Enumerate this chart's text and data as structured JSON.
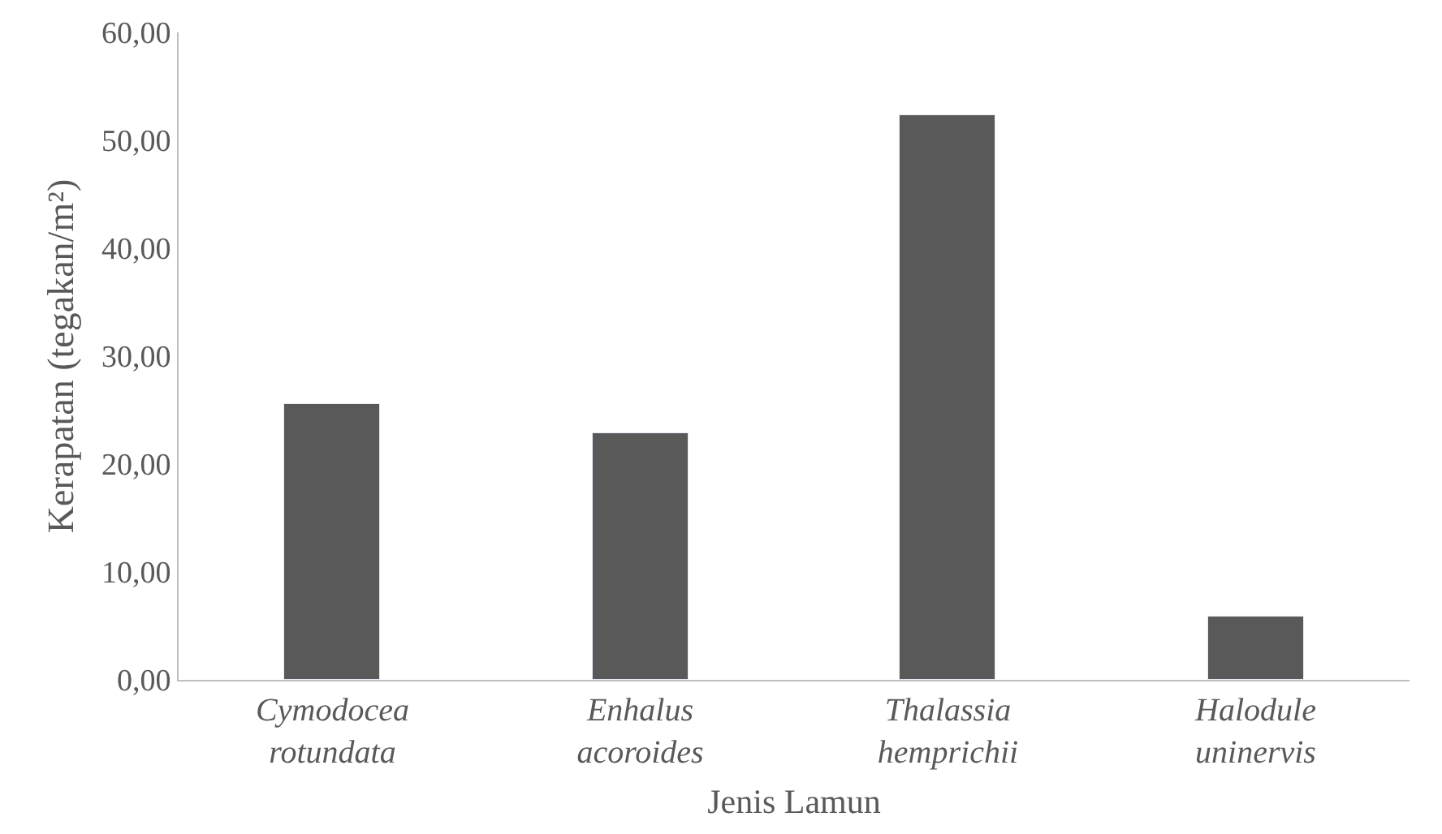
{
  "chart_data": {
    "type": "bar",
    "categories": [
      "Cymodocea rotundata",
      "Enhalus acoroides",
      "Thalassia hemprichii",
      "Halodule uninervis"
    ],
    "values": [
      25.6,
      22.8,
      52.4,
      5.8
    ],
    "color": "#595959",
    "xlabel": "Jenis Lamun",
    "ylabel": "Kerapatan (tegakan/m²)",
    "ylim": [
      0,
      60
    ],
    "yticks": [
      {
        "value": 0,
        "label": "0,00"
      },
      {
        "value": 10,
        "label": "10,00"
      },
      {
        "value": 20,
        "label": "20,00"
      },
      {
        "value": 30,
        "label": "30,00"
      },
      {
        "value": 40,
        "label": "40,00"
      },
      {
        "value": 50,
        "label": "50,00"
      },
      {
        "value": 60,
        "label": "60,00"
      }
    ],
    "grid": false
  }
}
